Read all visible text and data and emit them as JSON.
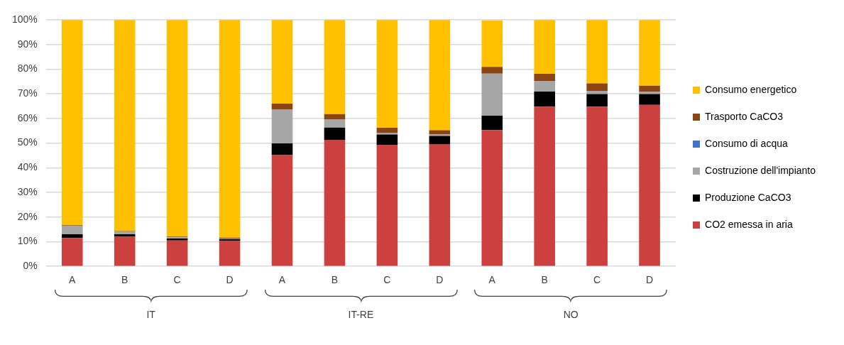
{
  "chart_data": {
    "type": "bar",
    "stacked": true,
    "categories": [
      "A",
      "B",
      "C",
      "D",
      "A",
      "B",
      "C",
      "D",
      "A",
      "B",
      "C",
      "D"
    ],
    "annotations": [
      "IT",
      "IT-RE",
      "NO"
    ],
    "series": [
      {
        "name": "CO2 emessa in aria",
        "color": "#cc4040",
        "values": [
          11.5,
          12,
          10.5,
          10.3,
          45.1,
          51.3,
          49.3,
          49.6,
          55.3,
          64.8,
          64.8,
          65.5
        ]
      },
      {
        "name": "Produzione CaCO3",
        "color": "#000000",
        "values": [
          1.5,
          1,
          0.8,
          0.7,
          4.8,
          5,
          4.2,
          3.3,
          5.8,
          6.1,
          5.1,
          4.4
        ]
      },
      {
        "name": "Costruzione dell'impianto",
        "color": "#a6a6a6",
        "values": [
          3.3,
          1,
          0.5,
          0.3,
          13.7,
          3.4,
          0.7,
          0.6,
          17.1,
          4.3,
          1.3,
          0.9
        ]
      },
      {
        "name": "Consumo di acqua",
        "color": "#4472c4",
        "values": [
          null,
          null,
          null,
          null,
          null,
          null,
          null,
          null,
          null,
          null,
          null,
          null
        ]
      },
      {
        "name": "Trasporto CaCO3",
        "color": "#8b4513",
        "values": [
          0.4,
          0.3,
          0.3,
          0.3,
          2.4,
          2.1,
          2,
          1.7,
          2.7,
          2.9,
          3,
          2.5
        ]
      },
      {
        "name": "Consumo energetico",
        "color": "#ffc000",
        "values": [
          83.2,
          85.6,
          87.8,
          88.3,
          33.9,
          38.1,
          43.7,
          44.7,
          18.9,
          21.8,
          25.7,
          26.6
        ]
      }
    ],
    "ylim": [
      0,
      100
    ],
    "yticks": [
      {
        "value": 0,
        "label": "0%"
      },
      {
        "value": 10,
        "label": "10%"
      },
      {
        "value": 20,
        "label": "20%"
      },
      {
        "value": 30,
        "label": "30%"
      },
      {
        "value": 40,
        "label": "40%"
      },
      {
        "value": 50,
        "label": "50%"
      },
      {
        "value": 60,
        "label": "60%"
      },
      {
        "value": 70,
        "label": "70%"
      },
      {
        "value": 80,
        "label": "80%"
      },
      {
        "value": 90,
        "label": "90%"
      },
      {
        "value": 100,
        "label": "100%"
      }
    ],
    "grid": "y",
    "legend": "right"
  }
}
